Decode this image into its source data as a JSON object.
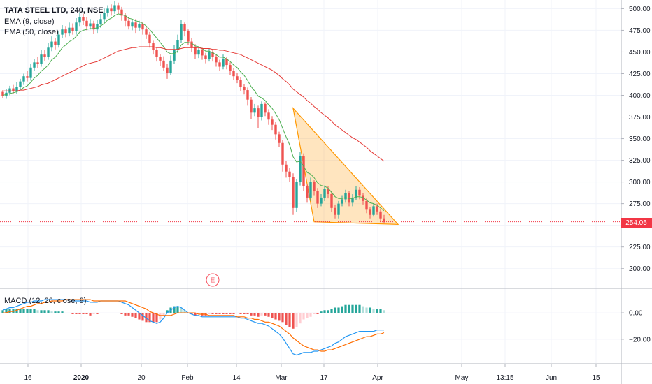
{
  "chart_data": {
    "type": "candlestick",
    "title": "TATA STEEL LTD, 240, NSE",
    "indicators": [
      "EMA (9, close)",
      "EMA (50, close)"
    ],
    "macd_label": "MACD (12, 26, close, 9)",
    "last_price": 254.05,
    "last_price_label": "254.05",
    "price_axis": {
      "ylim": [
        178,
        510
      ],
      "ticks": [
        500,
        475,
        450,
        425,
        400,
        375,
        350,
        325,
        300,
        275,
        250,
        225,
        200
      ],
      "tick_labels": [
        "500.00",
        "475.00",
        "450.00",
        "425.00",
        "400.00",
        "375.00",
        "350.00",
        "325.00",
        "300.00",
        "275.00",
        "250.00",
        "225.00",
        "200.00"
      ]
    },
    "macd_axis": {
      "ylim": [
        -38,
        18
      ],
      "ticks": [
        0,
        -20
      ],
      "tick_labels": [
        "0.00",
        "−20.00"
      ]
    },
    "time_axis": {
      "labels": [
        "16",
        "2020",
        "20",
        "Feb",
        "14",
        "Mar",
        "17",
        "Apr",
        "May",
        "13:15",
        "Jun",
        "15"
      ]
    },
    "event_marker": "E",
    "candles": [
      [
        404,
        399,
        406,
        397
      ],
      [
        399,
        403,
        407,
        396
      ],
      [
        403,
        408,
        411,
        400
      ],
      [
        408,
        405,
        412,
        402
      ],
      [
        405,
        410,
        415,
        402
      ],
      [
        410,
        416,
        419,
        407
      ],
      [
        416,
        422,
        425,
        412
      ],
      [
        422,
        420,
        428,
        416
      ],
      [
        420,
        432,
        436,
        417
      ],
      [
        432,
        438,
        442,
        428
      ],
      [
        438,
        436,
        444,
        431
      ],
      [
        436,
        447,
        452,
        433
      ],
      [
        447,
        444,
        452,
        440
      ],
      [
        444,
        455,
        460,
        441
      ],
      [
        455,
        462,
        468,
        451
      ],
      [
        462,
        458,
        466,
        453
      ],
      [
        458,
        470,
        474,
        455
      ],
      [
        470,
        476,
        481,
        466
      ],
      [
        476,
        472,
        480,
        467
      ],
      [
        472,
        478,
        484,
        468
      ],
      [
        478,
        474,
        483,
        470
      ],
      [
        474,
        484,
        489,
        470
      ],
      [
        484,
        490,
        496,
        480
      ],
      [
        490,
        486,
        494,
        481
      ],
      [
        486,
        480,
        490,
        475
      ],
      [
        480,
        483,
        488,
        476
      ],
      [
        483,
        476,
        486,
        471
      ],
      [
        476,
        482,
        487,
        472
      ],
      [
        482,
        488,
        494,
        478
      ],
      [
        488,
        495,
        500,
        484
      ],
      [
        495,
        500,
        504,
        491
      ],
      [
        500,
        497,
        505,
        492
      ],
      [
        497,
        504,
        509,
        494
      ],
      [
        504,
        499,
        507,
        494
      ],
      [
        499,
        492,
        502,
        486
      ],
      [
        492,
        486,
        495,
        480
      ],
      [
        486,
        480,
        490,
        476
      ],
      [
        480,
        484,
        488,
        475
      ],
      [
        484,
        478,
        488,
        472
      ],
      [
        478,
        482,
        486,
        474
      ],
      [
        482,
        476,
        485,
        470
      ],
      [
        476,
        470,
        480,
        465
      ],
      [
        470,
        460,
        473,
        455
      ],
      [
        460,
        452,
        463,
        447
      ],
      [
        452,
        444,
        456,
        439
      ],
      [
        444,
        440,
        448,
        434
      ],
      [
        440,
        432,
        445,
        428
      ],
      [
        432,
        426,
        436,
        419
      ],
      [
        426,
        440,
        446,
        423
      ],
      [
        440,
        452,
        458,
        436
      ],
      [
        452,
        464,
        470,
        449
      ],
      [
        464,
        482,
        487,
        460
      ],
      [
        482,
        474,
        484,
        468
      ],
      [
        474,
        462,
        476,
        458
      ],
      [
        462,
        455,
        466,
        450
      ],
      [
        455,
        447,
        459,
        442
      ],
      [
        447,
        452,
        456,
        443
      ],
      [
        452,
        446,
        455,
        441
      ],
      [
        446,
        442,
        449,
        437
      ],
      [
        442,
        450,
        454,
        439
      ],
      [
        450,
        444,
        453,
        439
      ],
      [
        444,
        438,
        447,
        433
      ],
      [
        438,
        433,
        441,
        428
      ],
      [
        433,
        442,
        447,
        430
      ],
      [
        442,
        435,
        444,
        430
      ],
      [
        435,
        428,
        438,
        423
      ],
      [
        428,
        422,
        431,
        418
      ],
      [
        422,
        418,
        426,
        414
      ],
      [
        418,
        410,
        421,
        405
      ],
      [
        410,
        406,
        413,
        401
      ],
      [
        406,
        395,
        409,
        388
      ],
      [
        395,
        380,
        398,
        373
      ],
      [
        380,
        385,
        390,
        376
      ],
      [
        385,
        375,
        388,
        362
      ],
      [
        375,
        390,
        393,
        371
      ],
      [
        390,
        380,
        392,
        376
      ],
      [
        380,
        372,
        384,
        366
      ],
      [
        372,
        366,
        376,
        360
      ],
      [
        366,
        355,
        369,
        349
      ],
      [
        355,
        345,
        358,
        340
      ],
      [
        345,
        320,
        348,
        312
      ],
      [
        320,
        312,
        324,
        305
      ],
      [
        312,
        306,
        316,
        300
      ],
      [
        306,
        270,
        310,
        262
      ],
      [
        270,
        300,
        303,
        265
      ],
      [
        300,
        330,
        335,
        296
      ],
      [
        330,
        295,
        333,
        290
      ],
      [
        295,
        282,
        298,
        276
      ],
      [
        282,
        300,
        305,
        278
      ],
      [
        300,
        290,
        302,
        284
      ],
      [
        290,
        275,
        293,
        270
      ],
      [
        275,
        282,
        286,
        272
      ],
      [
        282,
        292,
        296,
        278
      ],
      [
        292,
        286,
        295,
        281
      ],
      [
        286,
        270,
        289,
        265
      ],
      [
        270,
        262,
        274,
        258
      ],
      [
        262,
        275,
        278,
        258
      ],
      [
        275,
        280,
        284,
        272
      ],
      [
        280,
        287,
        291,
        276
      ],
      [
        287,
        276,
        290,
        272
      ],
      [
        276,
        282,
        286,
        272
      ],
      [
        282,
        291,
        295,
        279
      ],
      [
        291,
        284,
        294,
        280
      ],
      [
        284,
        278,
        287,
        274
      ],
      [
        278,
        268,
        281,
        264
      ],
      [
        268,
        262,
        271,
        258
      ],
      [
        262,
        272,
        275,
        260
      ],
      [
        272,
        266,
        275,
        262
      ],
      [
        266,
        258,
        269,
        255
      ],
      [
        258,
        254,
        262,
        252
      ]
    ],
    "ema9": [
      400,
      401,
      402,
      403,
      404,
      406,
      409,
      411,
      415,
      420,
      423,
      428,
      431,
      435,
      441,
      444,
      449,
      455,
      458,
      462,
      464,
      468,
      473,
      475,
      476,
      477,
      477,
      478,
      480,
      483,
      487,
      489,
      492,
      494,
      493,
      492,
      489,
      488,
      486,
      485,
      483,
      480,
      476,
      471,
      466,
      461,
      456,
      450,
      448,
      448,
      451,
      458,
      461,
      461,
      460,
      457,
      456,
      454,
      451,
      451,
      449,
      447,
      444,
      444,
      442,
      439,
      435,
      432,
      427,
      423,
      417,
      410,
      405,
      399,
      397,
      394,
      389,
      385,
      379,
      372,
      362,
      352,
      343,
      329,
      323,
      324,
      318,
      311,
      309,
      305,
      299,
      296,
      295,
      293,
      288,
      283,
      281,
      281,
      282,
      281,
      281,
      283,
      283,
      282,
      279,
      276,
      275,
      273,
      270,
      267
    ],
    "ema50": [
      405,
      405,
      405,
      405,
      405,
      406,
      406,
      407,
      408,
      409,
      410,
      412,
      413,
      414,
      416,
      418,
      420,
      422,
      424,
      426,
      428,
      430,
      432,
      434,
      436,
      437,
      438,
      439,
      441,
      443,
      445,
      447,
      449,
      451,
      452,
      453,
      454,
      455,
      455,
      456,
      456,
      456,
      456,
      456,
      455,
      455,
      454,
      453,
      453,
      453,
      453,
      454,
      455,
      455,
      455,
      455,
      455,
      454,
      454,
      454,
      453,
      453,
      452,
      452,
      451,
      450,
      449,
      448,
      447,
      445,
      443,
      441,
      439,
      437,
      435,
      433,
      431,
      429,
      426,
      423,
      419,
      416,
      412,
      407,
      404,
      401,
      398,
      394,
      391,
      387,
      384,
      380,
      377,
      374,
      370,
      366,
      363,
      360,
      357,
      354,
      351,
      349,
      346,
      343,
      340,
      336,
      333,
      330,
      327,
      324
    ],
    "macd": [
      2,
      3,
      4,
      4,
      5,
      6,
      7,
      8,
      8,
      9,
      9,
      9,
      10,
      10,
      10,
      10,
      10,
      10,
      10,
      10,
      9,
      9,
      9,
      9,
      9,
      8,
      8,
      8,
      9,
      9,
      9,
      9,
      9,
      9,
      8,
      7,
      6,
      4,
      2,
      0,
      -2,
      -4,
      -6,
      -7,
      -8,
      -7,
      -4,
      0,
      2,
      4,
      5,
      4,
      2,
      0,
      -1,
      -2,
      -2,
      -3,
      -3,
      -3,
      -3,
      -3,
      -3,
      -3,
      -3,
      -3,
      -3,
      -3,
      -4,
      -4,
      -5,
      -6,
      -7,
      -8,
      -8,
      -9,
      -10,
      -12,
      -14,
      -16,
      -19,
      -23,
      -27,
      -31,
      -32,
      -31,
      -30,
      -30,
      -30,
      -29,
      -29,
      -28,
      -27,
      -26,
      -25,
      -23,
      -22,
      -20,
      -18,
      -17,
      -16,
      -15,
      -14,
      -14,
      -14,
      -14,
      -14,
      -13,
      -13,
      -13
    ],
    "macd_signal": [
      0,
      0,
      1,
      1,
      2,
      3,
      4,
      5,
      5,
      6,
      7,
      7,
      8,
      8,
      9,
      9,
      9,
      9,
      10,
      10,
      10,
      10,
      10,
      10,
      10,
      10,
      9,
      9,
      9,
      9,
      9,
      9,
      9,
      9,
      9,
      9,
      8,
      7,
      6,
      5,
      4,
      3,
      1,
      0,
      -1,
      -2,
      -2,
      -2,
      -2,
      -1,
      0,
      0,
      0,
      0,
      0,
      0,
      -1,
      -1,
      -1,
      -2,
      -2,
      -2,
      -2,
      -2,
      -2,
      -2,
      -2,
      -3,
      -3,
      -3,
      -4,
      -4,
      -5,
      -5,
      -6,
      -7,
      -7,
      -8,
      -9,
      -10,
      -12,
      -14,
      -16,
      -19,
      -21,
      -23,
      -25,
      -26,
      -27,
      -28,
      -28,
      -29,
      -29,
      -28,
      -28,
      -27,
      -26,
      -25,
      -24,
      -23,
      -22,
      -21,
      -20,
      -19,
      -18,
      -18,
      -17,
      -16,
      -16,
      -15
    ]
  }
}
